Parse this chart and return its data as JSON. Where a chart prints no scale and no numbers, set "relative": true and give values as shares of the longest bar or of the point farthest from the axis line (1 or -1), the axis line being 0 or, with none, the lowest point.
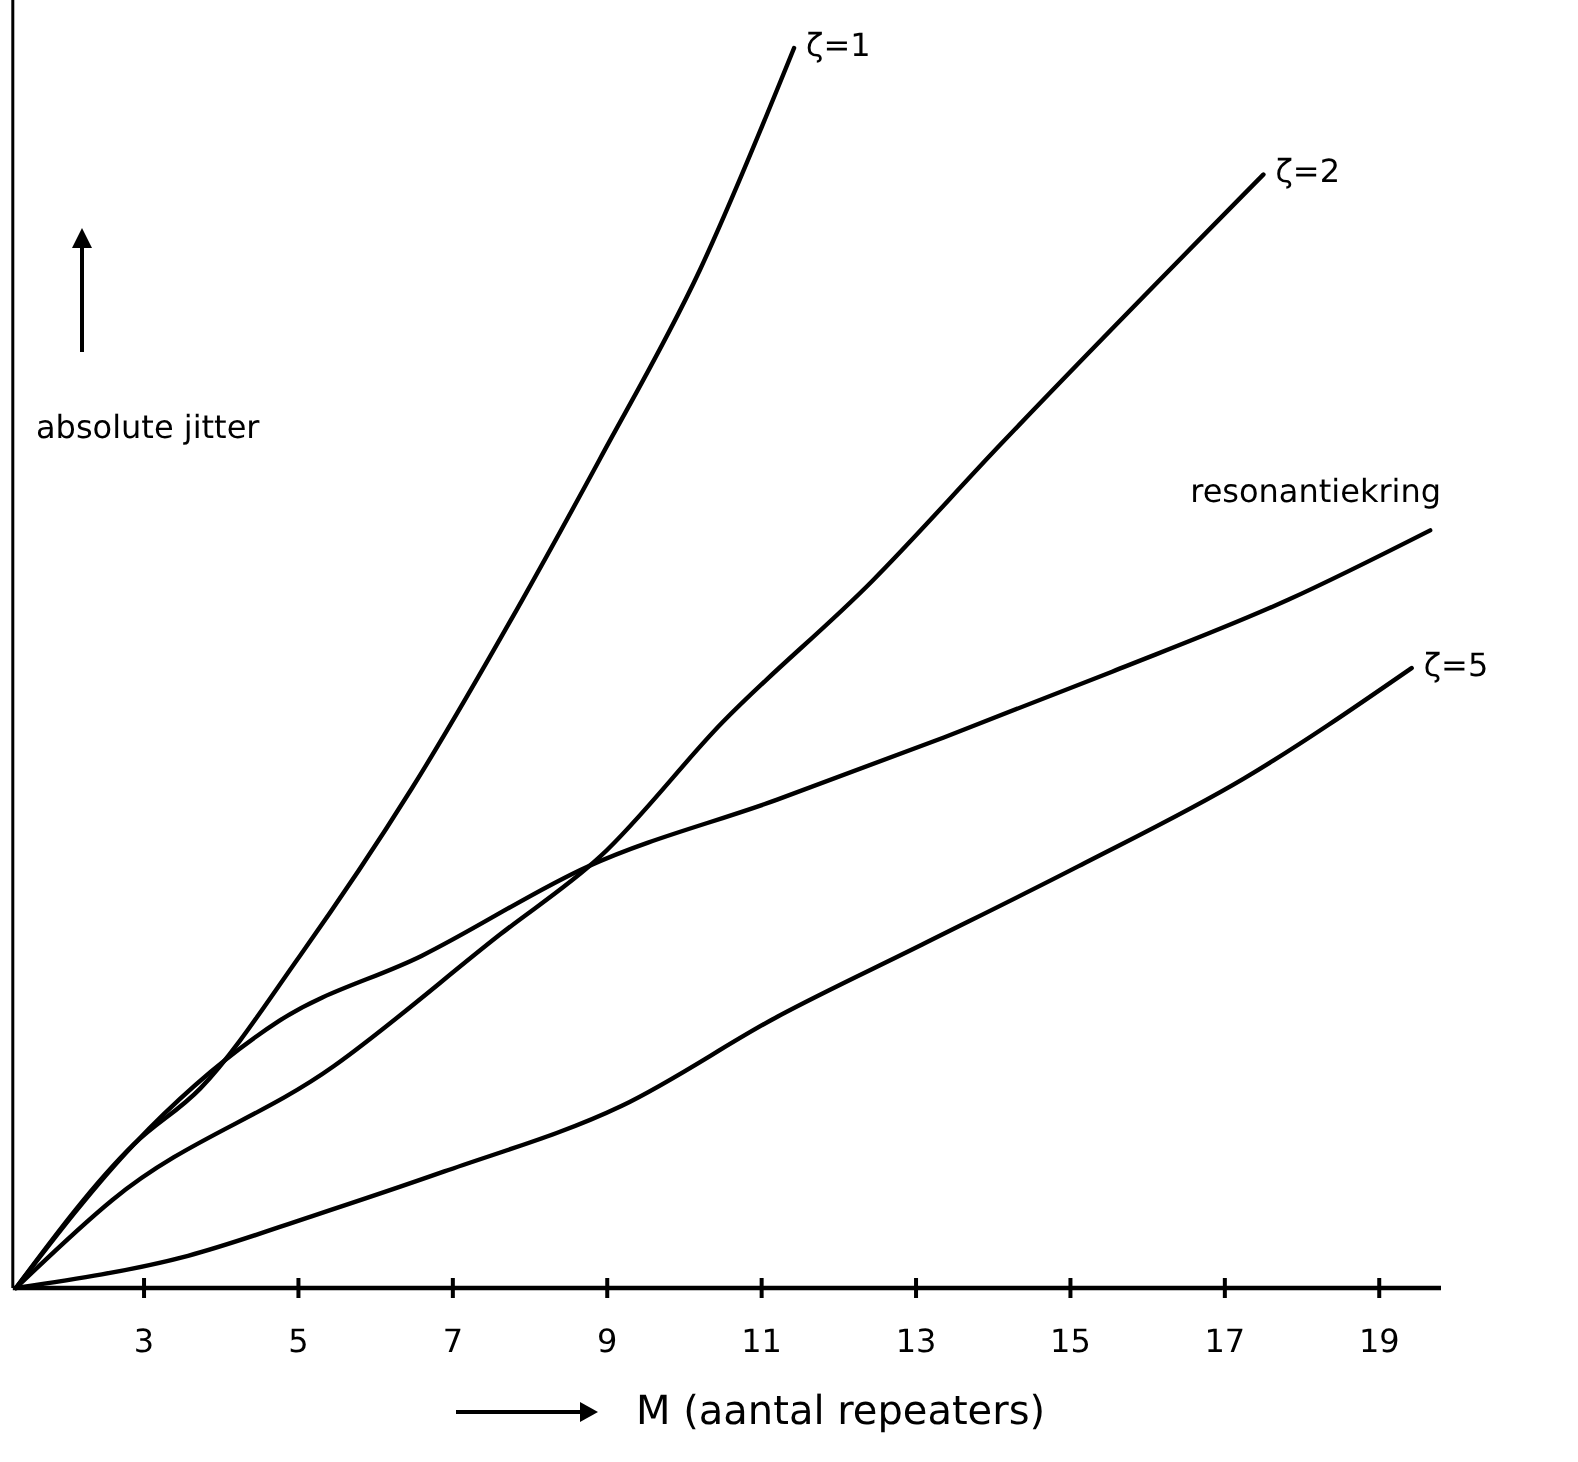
{
  "chart_data": {
    "type": "line",
    "relative": true,
    "xlabel": "M (aantal repeaters)",
    "ylabel": "absolute jitter",
    "xlim": [
      1.3,
      19.8
    ],
    "xticks": [
      3,
      5,
      7,
      9,
      11,
      13,
      15,
      17,
      19
    ],
    "series": [
      {
        "name": "ζ=1",
        "color": "#000000",
        "x": [
          1.34,
          2.87,
          3.73,
          5.02,
          6.47,
          7.9,
          8.9,
          10.2,
          11.42
        ],
        "values": [
          0,
          0.116,
          0.161,
          0.268,
          0.403,
          0.555,
          0.668,
          0.821,
          1
        ]
      },
      {
        "name": "ζ=2",
        "color": "#000000",
        "x": [
          1.34,
          2.59,
          5.46,
          7.61,
          8.91,
          10.49,
          12.43,
          14.09,
          17.5
        ],
        "values": [
          0,
          0.071,
          0.179,
          0.285,
          0.348,
          0.456,
          0.57,
          0.68,
          0.898
        ]
      },
      {
        "name": "resonantiekring",
        "color": "#000000",
        "x": [
          1.34,
          2.87,
          4.74,
          6.6,
          8.75,
          11.21,
          13.36,
          15.54,
          17.82,
          19.66
        ],
        "values": [
          0,
          0.116,
          0.215,
          0.268,
          0.34,
          0.394,
          0.444,
          0.497,
          0.555,
          0.611
        ]
      },
      {
        "name": "ζ=5",
        "color": "#000000",
        "x": [
          1.34,
          3.57,
          5.18,
          6.89,
          9.19,
          11.21,
          13.08,
          15.1,
          17.25,
          19.42
        ],
        "values": [
          0,
          0.026,
          0.058,
          0.094,
          0.147,
          0.219,
          0.277,
          0.34,
          0.411,
          0.5
        ]
      }
    ]
  }
}
